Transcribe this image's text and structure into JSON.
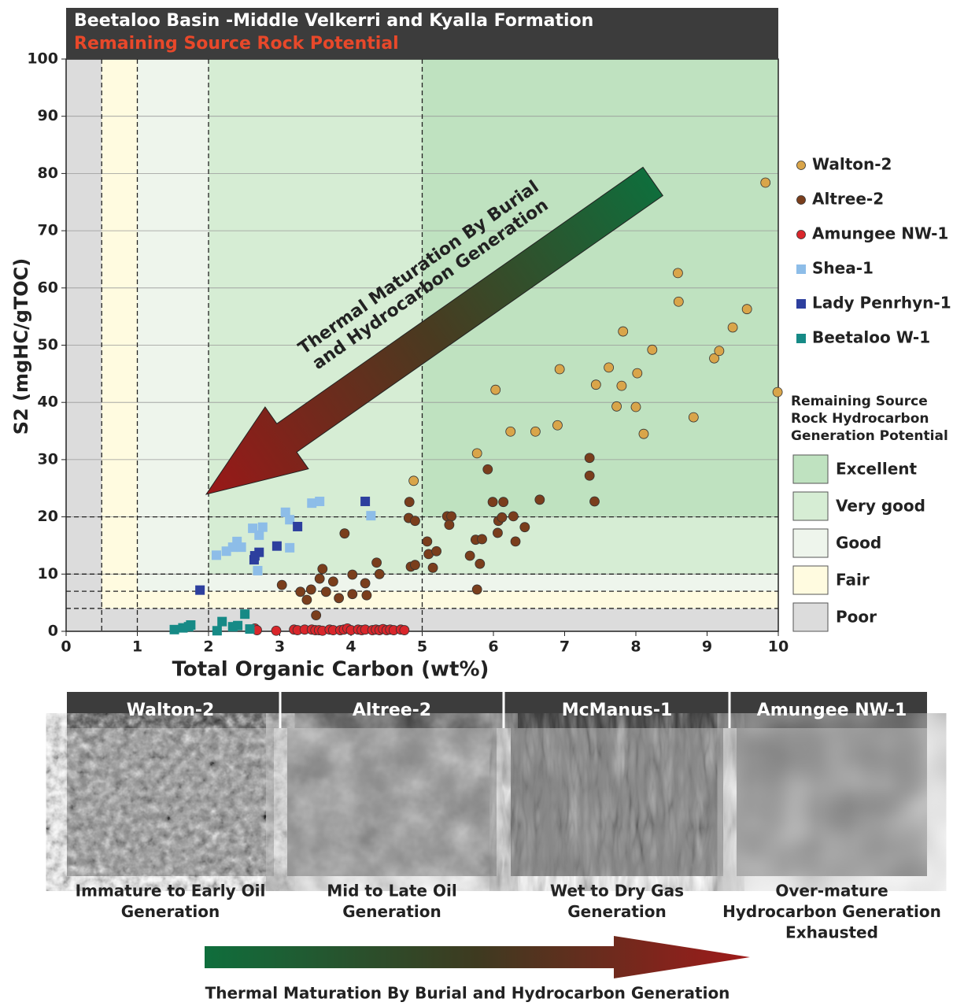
{
  "chart_data": {
    "type": "scatter",
    "title": "Beetaloo Basin -Middle Velkerri and Kyalla Formation",
    "subtitle": "Remaining Source Rock Potential",
    "x_label": "Total Organic Carbon (wt%)",
    "y_label": "S2 (mgHC/gTOC)",
    "xlim": [
      0,
      10
    ],
    "ylim": [
      0,
      100
    ],
    "xticks": [
      0,
      1,
      2,
      3,
      4,
      5,
      6,
      7,
      8,
      9,
      10
    ],
    "yticks": [
      0,
      10,
      20,
      30,
      40,
      50,
      60,
      70,
      80,
      90,
      100
    ],
    "grid": true,
    "annotation": [
      "Thermal Maturation By Burial",
      "and Hydrocarbon Generation"
    ],
    "zone_title": [
      "Remaining Source",
      "Rock Hydrocarbon",
      "Generation Potential"
    ],
    "zones": [
      {
        "name": "Poor",
        "color": "#dcdcdc",
        "toc": 0,
        "s2": 0
      },
      {
        "name": "Fair",
        "color": "#fffbe0",
        "toc": 0.5,
        "s2": 4
      },
      {
        "name": "Good",
        "color": "#eef5ec",
        "toc": 1,
        "s2": 7
      },
      {
        "name": "Very good",
        "color": "#d6edd4",
        "toc": 2,
        "s2": 10
      },
      {
        "name": "Excellent",
        "color": "#bfe2c0",
        "toc": 5,
        "s2": 20
      }
    ],
    "series": [
      {
        "name": "Walton-2",
        "color": "#d9a54a",
        "marker": "circle",
        "x": [
          4.88,
          5.77,
          6.03,
          6.24,
          6.59,
          6.9,
          6.93,
          7.44,
          7.62,
          7.73,
          7.8,
          7.82,
          8.02,
          8.0,
          8.11,
          8.23,
          8.59,
          8.6,
          8.81,
          9.1,
          9.17,
          9.36,
          9.56,
          9.82,
          9.99
        ],
        "values": [
          26.3,
          31.1,
          42.2,
          34.9,
          34.9,
          36.0,
          45.8,
          43.1,
          46.1,
          39.3,
          42.9,
          52.4,
          45.1,
          39.2,
          34.5,
          49.2,
          62.6,
          57.6,
          37.4,
          47.7,
          49.0,
          53.1,
          56.3,
          78.4,
          41.8
        ]
      },
      {
        "name": "Altree-2",
        "color": "#7a3e1c",
        "marker": "circle",
        "x": [
          3.03,
          3.29,
          3.38,
          3.44,
          3.51,
          3.56,
          3.6,
          3.65,
          3.75,
          3.83,
          3.91,
          4.02,
          4.02,
          4.2,
          4.22,
          4.36,
          4.4,
          4.82,
          4.81,
          4.9,
          4.84,
          4.9,
          5.07,
          5.09,
          5.15,
          5.2,
          5.35,
          5.41,
          5.38,
          5.67,
          5.75,
          5.84,
          5.77,
          5.81,
          5.92,
          5.99,
          6.14,
          6.07,
          6.12,
          6.06,
          6.28,
          6.31,
          6.44,
          6.65,
          7.35,
          7.35,
          7.42
        ],
        "values": [
          8.1,
          6.9,
          5.5,
          7.3,
          2.8,
          9.2,
          10.9,
          6.9,
          8.7,
          5.8,
          17.1,
          9.9,
          6.5,
          8.4,
          6.3,
          12.0,
          10.0,
          22.6,
          19.8,
          19.3,
          11.3,
          11.6,
          15.7,
          13.5,
          11.1,
          14.0,
          20.1,
          20.1,
          18.6,
          13.2,
          16.0,
          16.1,
          7.3,
          11.8,
          28.3,
          22.6,
          22.6,
          19.3,
          19.9,
          17.2,
          20.1,
          15.7,
          18.2,
          23.0,
          30.3,
          27.2,
          22.7
        ]
      },
      {
        "name": "Amungee NW-1",
        "color": "#d9262b",
        "marker": "circle",
        "x": [
          2.65,
          2.68,
          2.95,
          3.2,
          3.25,
          3.35,
          3.45,
          3.5,
          3.55,
          3.6,
          3.7,
          3.75,
          3.85,
          3.9,
          3.95,
          4.0,
          4.1,
          4.15,
          4.2,
          4.3,
          4.35,
          4.4,
          4.45,
          4.5,
          4.55,
          4.6,
          4.7,
          4.75
        ],
        "values": [
          0.5,
          0.2,
          0.1,
          0.3,
          0.2,
          0.3,
          0.3,
          0.2,
          0.2,
          0.1,
          0.3,
          0.2,
          0.2,
          0.3,
          0.5,
          0.2,
          0.3,
          0.2,
          0.3,
          0.2,
          0.3,
          0.2,
          0.4,
          0.2,
          0.3,
          0.2,
          0.3,
          0.2
        ]
      },
      {
        "name": "Shea-1",
        "color": "#8dbde8",
        "marker": "square",
        "x": [
          2.11,
          2.25,
          2.34,
          2.4,
          2.46,
          2.62,
          2.71,
          2.76,
          2.69,
          3.08,
          3.14,
          3.14,
          3.45,
          3.56,
          4.28
        ],
        "values": [
          13.3,
          14.0,
          14.7,
          15.7,
          14.7,
          18.0,
          16.8,
          18.2,
          10.6,
          20.8,
          19.5,
          14.6,
          22.4,
          22.7,
          20.2
        ]
      },
      {
        "name": "Lady Penrhyn-1",
        "color": "#2d3f9e",
        "marker": "square",
        "x": [
          1.88,
          2.64,
          2.65,
          2.71,
          2.96,
          3.25,
          4.2
        ],
        "values": [
          7.2,
          12.5,
          13.2,
          13.8,
          14.9,
          18.3,
          22.7
        ]
      },
      {
        "name": "Beetaloo W-1",
        "color": "#168a86",
        "marker": "square",
        "x": [
          1.52,
          1.64,
          1.72,
          1.75,
          2.12,
          2.19,
          2.34,
          2.41,
          2.51,
          2.58
        ],
        "values": [
          0.3,
          0.6,
          0.8,
          1.1,
          0.1,
          1.7,
          0.8,
          1.0,
          3.0,
          0.4
        ]
      }
    ]
  },
  "panels": [
    {
      "title": "Walton-2",
      "caption": [
        "Immature to Early Oil",
        "Generation"
      ]
    },
    {
      "title": "Altree-2",
      "caption": [
        "Mid to Late Oil",
        "Generation"
      ]
    },
    {
      "title": "McManus-1",
      "caption": [
        "Wet to Dry Gas",
        "Generation"
      ]
    },
    {
      "title": "Amungee NW-1",
      "caption": [
        "Over-mature",
        "Hydrocarbon Generation",
        "Exhausted"
      ]
    }
  ],
  "footer_label": "Thermal Maturation By Burial and Hydrocarbon Generation"
}
